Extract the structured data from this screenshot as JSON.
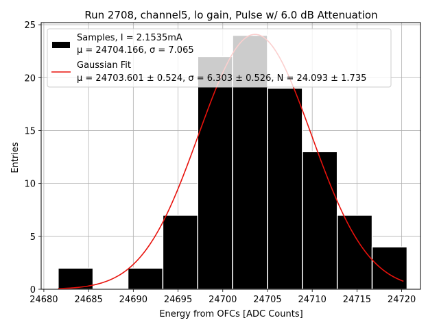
{
  "chart_data": {
    "type": "bar",
    "title": "Run 2708, channel5, lo gain, Pulse w/ 6.0 dB Attenuation",
    "xlabel": "Energy from OFCs [ADC Counts]",
    "ylabel": "Entries",
    "xlim": [
      24679.7,
      24722.1
    ],
    "ylim": [
      0,
      25.2
    ],
    "xticks": [
      24680,
      24685,
      24690,
      24695,
      24700,
      24705,
      24710,
      24715,
      24720
    ],
    "yticks": [
      0,
      5,
      10,
      15,
      20,
      25
    ],
    "grid": true,
    "histogram": {
      "name": "Samples",
      "bins": [
        {
          "x0": 24681.6,
          "x1": 24685.5,
          "count": 2
        },
        {
          "x0": 24685.5,
          "x1": 24689.4,
          "count": 0
        },
        {
          "x0": 24689.4,
          "x1": 24693.3,
          "count": 2
        },
        {
          "x0": 24693.3,
          "x1": 24697.2,
          "count": 7
        },
        {
          "x0": 24697.2,
          "x1": 24701.1,
          "count": 22
        },
        {
          "x0": 24701.1,
          "x1": 24705.0,
          "count": 24
        },
        {
          "x0": 24705.0,
          "x1": 24708.9,
          "count": 19
        },
        {
          "x0": 24708.9,
          "x1": 24712.8,
          "count": 13
        },
        {
          "x0": 24712.8,
          "x1": 24716.7,
          "count": 7
        },
        {
          "x0": 24716.7,
          "x1": 24720.6,
          "count": 4
        }
      ],
      "color": "#000000"
    },
    "fit": {
      "name": "Gaussian Fit",
      "mu": 24703.601,
      "sigma": 6.303,
      "N": 24.093,
      "x_range": [
        24681.6,
        24720.2
      ],
      "color": "#e8120c"
    },
    "legend": {
      "location": "top-left",
      "entries": [
        {
          "line1": "Samples, I = 2.1535mA",
          "line2": "μ = 24704.166, σ = 7.065"
        },
        {
          "line1": "Gaussian Fit",
          "line2": "μ = 24703.601 ± 0.524, σ = 6.303 ± 0.526, N = 24.093 ± 1.735"
        }
      ]
    }
  }
}
